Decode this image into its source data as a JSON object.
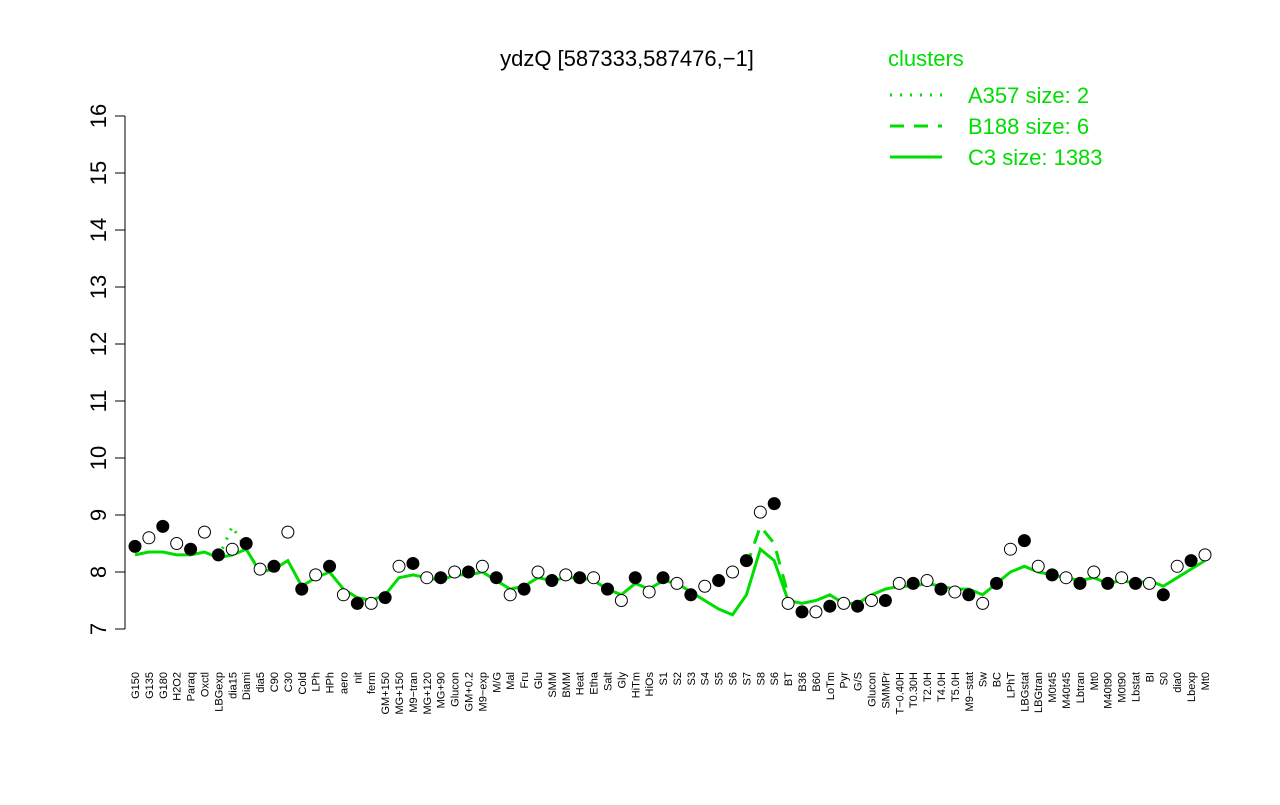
{
  "chart_data": {
    "type": "line",
    "title": "ydzQ [587333,587476,−1]",
    "legend_title": "clusters",
    "legend_position": "top-right",
    "ylim": [
      7,
      16
    ],
    "yticks": [
      7,
      8,
      9,
      10,
      11,
      12,
      13,
      14,
      15,
      16
    ],
    "point_color": "#000000",
    "categories": [
      "G150",
      "G135",
      "G180",
      "H2O2",
      "Paraq",
      "Oxctl",
      "LBGexp",
      "dia15",
      "Diami",
      "dia5",
      "C90",
      "C30",
      "Cold",
      "LPh",
      "HPh",
      "aero",
      "nit",
      "ferm",
      "GM+150",
      "MG+150",
      "M9−tran",
      "MG+120",
      "MG+90",
      "Glucon",
      "GM+0.2",
      "M9−exp",
      "M/G",
      "Mal",
      "Fru",
      "Glu",
      "SMM",
      "BMM",
      "Heat",
      "Etha",
      "Salt",
      "Gly",
      "HiTm",
      "HiOs",
      "S1",
      "S2",
      "S3",
      "S4",
      "S5",
      "S6",
      "S7",
      "S8",
      "S6",
      "BT",
      "B36",
      "B60",
      "LoTm",
      "Pyr",
      "G/S",
      "Glucon",
      "SMMPr",
      "T−0.40H",
      "T0.30H",
      "T2.0H",
      "T4.0H",
      "T5.0H",
      "M9−stat",
      "Sw",
      "BC",
      "LPhT",
      "LBGstat",
      "LBGtran",
      "M0t45",
      "M40t45",
      "Lbtran",
      "Mt0",
      "M40t90",
      "M0t90",
      "Lbstat",
      "BI",
      "S0",
      "dia0",
      "Lbexp",
      "Mt0"
    ],
    "values": [
      8.45,
      8.6,
      8.8,
      8.5,
      8.4,
      8.7,
      8.3,
      8.4,
      8.5,
      8.05,
      8.1,
      8.7,
      7.7,
      7.95,
      8.1,
      7.6,
      7.45,
      7.45,
      7.55,
      8.1,
      8.15,
      7.9,
      7.9,
      8.0,
      8.0,
      8.1,
      7.9,
      7.6,
      7.7,
      8.0,
      7.85,
      7.95,
      7.9,
      7.9,
      7.7,
      7.5,
      7.9,
      7.65,
      7.9,
      7.8,
      7.6,
      7.75,
      7.85,
      8.0,
      8.2,
      9.05,
      9.2,
      7.45,
      7.3,
      7.3,
      7.4,
      7.45,
      7.4,
      7.5,
      7.5,
      7.8,
      7.8,
      7.85,
      7.7,
      7.65,
      7.6,
      7.45,
      7.8,
      8.4,
      8.55,
      8.1,
      7.95,
      7.9,
      7.8,
      8.0,
      7.8,
      7.9,
      7.8,
      7.8,
      7.6,
      8.1,
      8.2,
      8.3
    ],
    "series": [
      {
        "name": "A357 size: 2",
        "color": "#00dd00",
        "dash": "dotted",
        "values": [
          null,
          null,
          null,
          null,
          null,
          null,
          8.25,
          8.8,
          8.4,
          null,
          null,
          null,
          null,
          null,
          null,
          null,
          null,
          null,
          null,
          null,
          null,
          null,
          null,
          null,
          null,
          null,
          null,
          null,
          null,
          null,
          null,
          null,
          null,
          null,
          null,
          null,
          null,
          null,
          null,
          null,
          null,
          null,
          null,
          null,
          null,
          null,
          null,
          null,
          null,
          null,
          null,
          null,
          null,
          null,
          null,
          null,
          null,
          null,
          null,
          null,
          null,
          null,
          null,
          null,
          null,
          null,
          null,
          null,
          null,
          null,
          null,
          null,
          null,
          null,
          null,
          null,
          null,
          null
        ]
      },
      {
        "name": "B188 size: 6",
        "color": "#00dd00",
        "dash": "dashed",
        "values": [
          null,
          null,
          null,
          null,
          null,
          null,
          null,
          null,
          null,
          null,
          null,
          null,
          null,
          null,
          null,
          null,
          null,
          null,
          null,
          null,
          null,
          null,
          null,
          null,
          null,
          null,
          null,
          null,
          null,
          null,
          null,
          null,
          null,
          null,
          null,
          null,
          null,
          null,
          null,
          null,
          null,
          null,
          null,
          null,
          8.1,
          8.8,
          8.5,
          7.6,
          null,
          null,
          null,
          null,
          null,
          null,
          null,
          null,
          null,
          null,
          null,
          null,
          null,
          null,
          null,
          null,
          null,
          null,
          null,
          null,
          null,
          null,
          null,
          null,
          null,
          null,
          null,
          null,
          null,
          null
        ]
      },
      {
        "name": "C3 size: 1383",
        "color": "#00dd00",
        "dash": "solid",
        "values": [
          8.3,
          8.35,
          8.35,
          8.3,
          8.3,
          8.35,
          8.25,
          8.3,
          8.4,
          8.0,
          8.05,
          8.2,
          7.75,
          7.9,
          8.0,
          7.7,
          7.55,
          7.5,
          7.6,
          7.9,
          7.95,
          7.9,
          7.85,
          7.95,
          7.95,
          8.0,
          7.85,
          7.7,
          7.75,
          7.9,
          7.85,
          7.9,
          7.9,
          7.85,
          7.7,
          7.6,
          7.8,
          7.7,
          7.85,
          7.8,
          7.65,
          7.5,
          7.35,
          7.25,
          7.6,
          8.4,
          8.2,
          7.5,
          7.45,
          7.5,
          7.6,
          7.45,
          7.45,
          7.6,
          7.7,
          7.75,
          7.75,
          7.8,
          7.75,
          7.7,
          7.7,
          7.6,
          7.8,
          8.0,
          8.1,
          8.0,
          7.95,
          7.9,
          7.85,
          7.9,
          7.8,
          7.85,
          7.8,
          7.85,
          7.75,
          7.9,
          8.05,
          8.2
        ]
      }
    ]
  }
}
